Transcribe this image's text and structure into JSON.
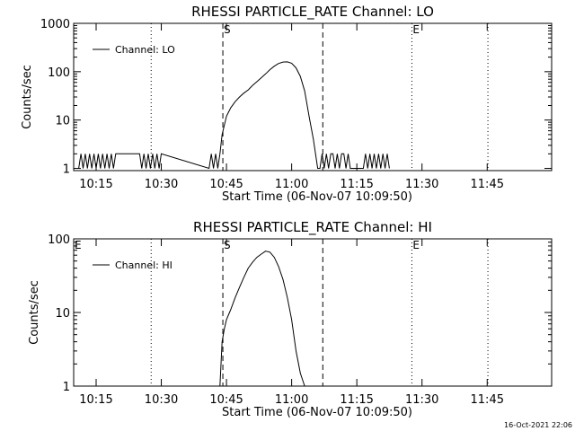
{
  "footer": {
    "timestamp": "16-Oct-2021 22:06"
  },
  "chart_data": [
    {
      "type": "line",
      "title": "RHESSI PARTICLE_RATE Channel: LO",
      "xlabel": "Start Time (06-Nov-07 10:09:50)",
      "ylabel": "Counts/sec",
      "yscale": "log",
      "ylim": [
        0.9,
        1000
      ],
      "yticks": [
        1,
        10,
        100,
        1000
      ],
      "ytick_labels": [
        "1",
        "10",
        "100",
        "1000"
      ],
      "xlim_minutes": [
        0,
        110
      ],
      "xticks": [
        "10:15",
        "10:30",
        "10:45",
        "11:00",
        "11:15",
        "11:30",
        "11:45"
      ],
      "grid": false,
      "legend": {
        "label": "Channel: LO",
        "position": "top-left"
      },
      "markers": [
        {
          "label": "",
          "time": "10:27:40",
          "style": "dotted"
        },
        {
          "label": "S",
          "time": "10:44:10",
          "style": "dashed"
        },
        {
          "label": "",
          "time": "11:07:10",
          "style": "dashed"
        },
        {
          "label": "E",
          "time": "11:27:40",
          "style": "dotted"
        },
        {
          "label": "",
          "time": "11:45:10",
          "style": "dotted"
        }
      ],
      "series": [
        {
          "name": "Channel: LO",
          "x": [
            "10:11:00",
            "10:11:30",
            "10:12:00",
            "10:12:30",
            "10:13:00",
            "10:13:30",
            "10:14:00",
            "10:14:30",
            "10:15:00",
            "10:15:30",
            "10:16:00",
            "10:16:30",
            "10:17:00",
            "10:17:30",
            "10:18:00",
            "10:18:30",
            "10:19:00",
            "10:19:30",
            "10:20:00",
            "10:21:00",
            "10:22:00",
            "10:23:00",
            "10:24:00",
            "10:24:30",
            "10:25:00",
            "10:25:30",
            "10:26:00",
            "10:26:30",
            "10:27:00",
            "10:27:30",
            "10:28:00",
            "10:28:30",
            "10:29:00",
            "10:29:30",
            "10:30:00",
            "10:41:00",
            "10:41:30",
            "10:42:00",
            "10:42:30",
            "10:43:00",
            "10:43:30",
            "10:44:00",
            "10:45:00",
            "10:46:00",
            "10:47:00",
            "10:48:00",
            "10:49:00",
            "10:50:00",
            "10:51:00",
            "10:52:00",
            "10:53:00",
            "10:54:00",
            "10:55:00",
            "10:56:00",
            "10:57:00",
            "10:58:00",
            "10:59:00",
            "11:00:00",
            "11:01:00",
            "11:02:00",
            "11:03:00",
            "11:04:00",
            "11:05:00",
            "11:05:30",
            "11:06:00",
            "11:06:30",
            "11:07:00",
            "11:07:30",
            "11:08:00",
            "11:08:30",
            "11:09:00",
            "11:09:30",
            "11:10:00",
            "11:10:30",
            "11:11:00",
            "11:11:30",
            "11:12:00",
            "11:12:30",
            "11:13:00",
            "11:13:30",
            "11:14:00",
            "11:14:30",
            "11:15:00",
            "11:15:30",
            "11:16:00",
            "11:16:30",
            "11:17:00",
            "11:17:30",
            "11:18:00",
            "11:18:30",
            "11:19:00",
            "11:19:30",
            "11:20:00",
            "11:20:30",
            "11:21:00",
            "11:21:30",
            "11:22:00",
            "11:22:30"
          ],
          "y": [
            1,
            2,
            1,
            2,
            1,
            2,
            1,
            2,
            1,
            2,
            1,
            2,
            1,
            2,
            1,
            2,
            1,
            2,
            2,
            2,
            2,
            2,
            2,
            2,
            2,
            1,
            2,
            1,
            2,
            1,
            2,
            1,
            2,
            1,
            2,
            1,
            2,
            1,
            2,
            1,
            2,
            5,
            12,
            18,
            24,
            30,
            36,
            42,
            52,
            62,
            75,
            90,
            110,
            130,
            148,
            158,
            160,
            150,
            120,
            80,
            40,
            12,
            4,
            2,
            1,
            1,
            2,
            1,
            2,
            1,
            2,
            2,
            1,
            2,
            1,
            2,
            2,
            1,
            2,
            1,
            1,
            1,
            1,
            1,
            1,
            1,
            2,
            1,
            2,
            1,
            2,
            1,
            2,
            1,
            2,
            1,
            2,
            1
          ]
        }
      ]
    },
    {
      "type": "line",
      "title": "RHESSI PARTICLE_RATE Channel: HI",
      "xlabel": "Start Time (06-Nov-07 10:09:50)",
      "ylabel": "Counts/sec",
      "yscale": "log",
      "ylim": [
        1,
        100
      ],
      "yticks": [
        1,
        10,
        100
      ],
      "ytick_labels": [
        "1",
        "10",
        "100"
      ],
      "xlim_minutes": [
        0,
        110
      ],
      "xticks": [
        "10:15",
        "10:30",
        "10:45",
        "11:00",
        "11:15",
        "11:30",
        "11:45"
      ],
      "grid": false,
      "legend": {
        "label": "Channel: HI",
        "position": "top-left"
      },
      "markers": [
        {
          "label": "E",
          "time": "10:09:50",
          "style": "none"
        },
        {
          "label": "",
          "time": "10:27:40",
          "style": "dotted"
        },
        {
          "label": "S",
          "time": "10:44:10",
          "style": "dashed"
        },
        {
          "label": "",
          "time": "11:07:10",
          "style": "dashed"
        },
        {
          "label": "E",
          "time": "11:27:40",
          "style": "dotted"
        },
        {
          "label": "",
          "time": "11:45:10",
          "style": "dotted"
        }
      ],
      "series": [
        {
          "name": "Channel: HI",
          "x": [
            "10:43:30",
            "10:44:00",
            "10:44:30",
            "10:45:00",
            "10:46:00",
            "10:47:00",
            "10:48:00",
            "10:49:00",
            "10:50:00",
            "10:51:00",
            "10:52:00",
            "10:53:00",
            "10:54:00",
            "10:55:00",
            "10:56:00",
            "10:57:00",
            "10:58:00",
            "10:59:00",
            "11:00:00",
            "11:01:00",
            "11:02:00",
            "11:03:00"
          ],
          "y": [
            1,
            4,
            6,
            8,
            11,
            16,
            22,
            30,
            40,
            48,
            56,
            62,
            68,
            66,
            56,
            42,
            28,
            16,
            8,
            3,
            1.5,
            1
          ]
        }
      ]
    }
  ]
}
